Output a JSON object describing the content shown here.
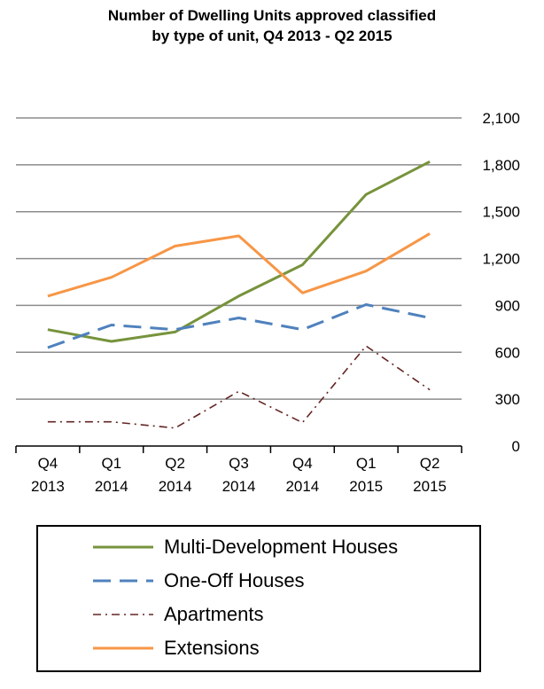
{
  "chart_data": {
    "type": "line",
    "title_line1": "Number of Dwelling Units approved classified",
    "title_line2": "by type of unit,  Q4 2013 - Q2 2015",
    "categories": [
      [
        "Q4",
        "2013"
      ],
      [
        "Q1",
        "2014"
      ],
      [
        "Q2",
        "2014"
      ],
      [
        "Q3",
        "2014"
      ],
      [
        "Q4",
        "2014"
      ],
      [
        "Q1",
        "2015"
      ],
      [
        "Q2",
        "2015"
      ]
    ],
    "y_ticks": [
      "0",
      "300",
      "600",
      "900",
      "1,200",
      "1,500",
      "1,800",
      "2,100"
    ],
    "ylim": [
      0,
      2100
    ],
    "y_step": 300,
    "grid": true,
    "legend_position": "bottom",
    "series": [
      {
        "name": "Multi-Development Houses",
        "color": "#77933C",
        "style": "solid",
        "values": [
          745,
          670,
          730,
          960,
          1160,
          1610,
          1820
        ]
      },
      {
        "name": "One-Off Houses",
        "color": "#4F81BD",
        "style": "dash",
        "values": [
          630,
          775,
          745,
          820,
          745,
          905,
          820
        ]
      },
      {
        "name": "Apartments",
        "color": "#632523",
        "style": "dashdot",
        "values": [
          155,
          155,
          115,
          350,
          150,
          640,
          360
        ]
      },
      {
        "name": "Extensions",
        "color": "#F79646",
        "style": "solid",
        "values": [
          960,
          1080,
          1280,
          1345,
          980,
          1120,
          1360
        ]
      }
    ]
  }
}
